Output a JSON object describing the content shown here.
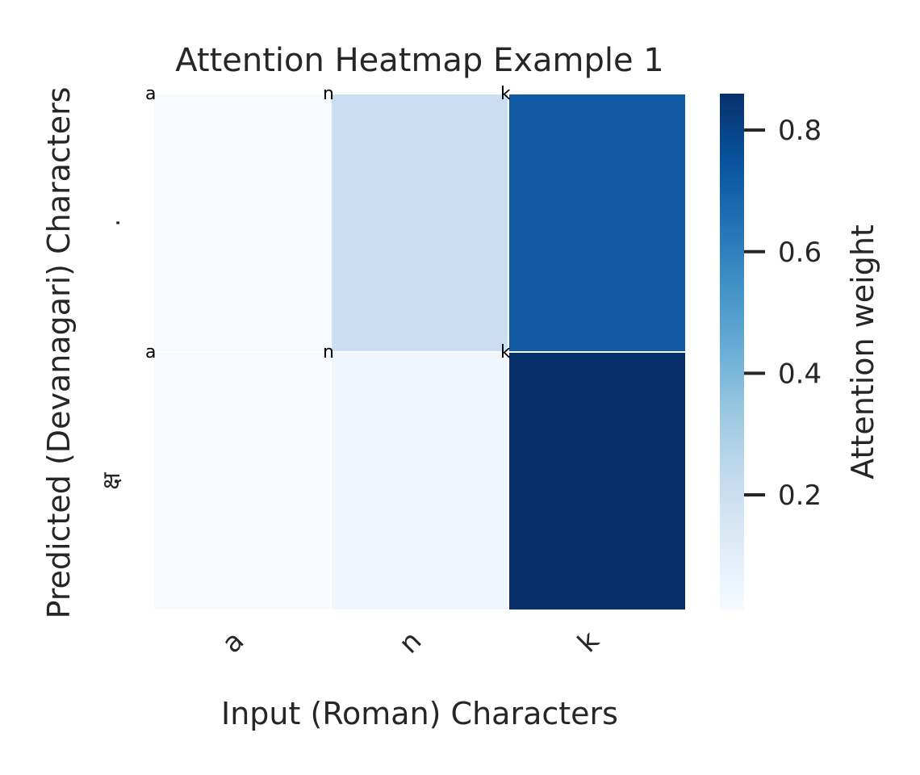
{
  "chart_data": {
    "type": "heatmap",
    "title": "Attention Heatmap Example 1",
    "xlabel": "Input (Roman) Characters",
    "ylabel": "Predicted (Devanagari) Characters",
    "x_categories": [
      "a",
      "n",
      "k"
    ],
    "y_categories": [
      ".",
      "क्ष"
    ],
    "values": [
      [
        0.01,
        0.2,
        0.72
      ],
      [
        0.01,
        0.04,
        0.86
      ]
    ],
    "cell_annotations": [
      [
        "a",
        "n",
        "k"
      ],
      [
        "a",
        "n",
        "k"
      ]
    ],
    "colormap": "Blues",
    "colors": {
      "low": "#f7fbff",
      "high": "#08306b"
    },
    "colorbar": {
      "label": "Attention weight",
      "range": [
        0.01,
        0.86
      ],
      "ticks": [
        0.2,
        0.4,
        0.6,
        0.8
      ],
      "tick_labels": [
        "0.2",
        "0.4",
        "0.6",
        "0.8"
      ]
    }
  }
}
